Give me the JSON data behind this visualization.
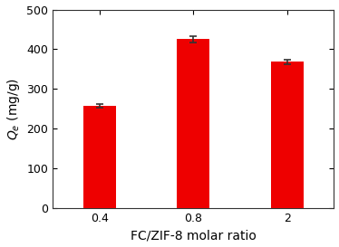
{
  "categories": [
    "0.4",
    "0.8",
    "2"
  ],
  "values": [
    258,
    425,
    368
  ],
  "errors": [
    4,
    8,
    6
  ],
  "bar_color": "#ee0000",
  "bar_width": 0.35,
  "x_positions": [
    0,
    1,
    2
  ],
  "xlim": [
    -0.5,
    2.5
  ],
  "ylim": [
    0,
    500
  ],
  "yticks": [
    0,
    100,
    200,
    300,
    400,
    500
  ],
  "ylabel": "$Q_e$ (mg/g)",
  "xlabel": "FC/ZIF-8 molar ratio",
  "ylabel_fontsize": 10,
  "xlabel_fontsize": 10,
  "tick_fontsize": 9,
  "error_capsize": 3,
  "error_linewidth": 1.2,
  "error_color": "#333333",
  "background_color": "#ffffff",
  "spine_color": "#333333"
}
